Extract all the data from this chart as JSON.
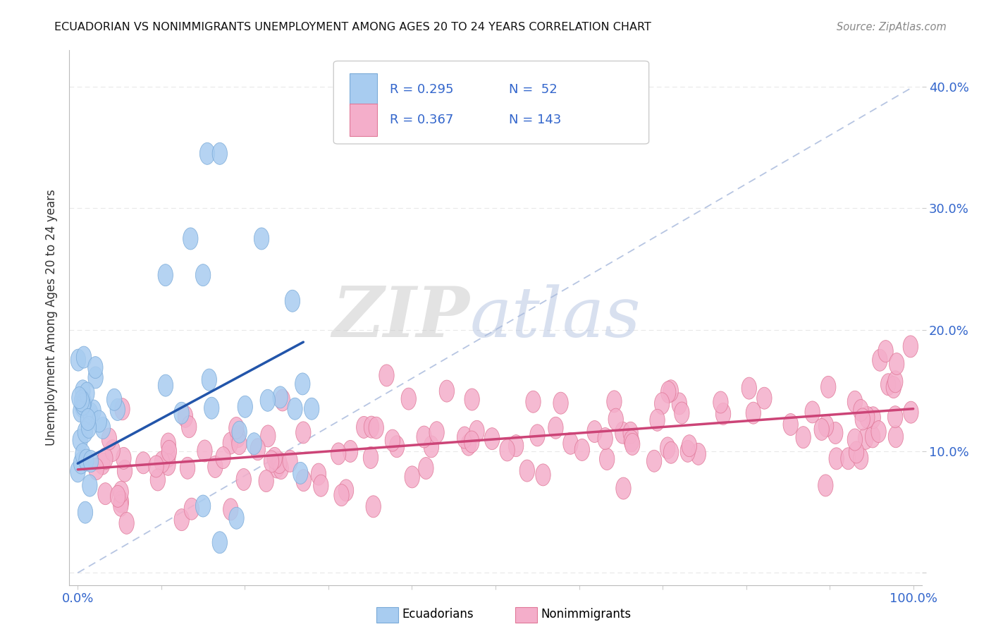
{
  "title": "ECUADORIAN VS NONIMMIGRANTS UNEMPLOYMENT AMONG AGES 20 TO 24 YEARS CORRELATION CHART",
  "source": "Source: ZipAtlas.com",
  "ylabel": "Unemployment Among Ages 20 to 24 years",
  "xlim": [
    -0.01,
    1.01
  ],
  "ylim": [
    -0.01,
    0.43
  ],
  "ecuadorian_color": "#A8CCF0",
  "ecuadorian_edge": "#7AAAD8",
  "nonimmigrant_color": "#F4AECA",
  "nonimmigrant_edge": "#E07898",
  "ecuadorian_line_color": "#2255AA",
  "nonimmigrant_line_color": "#CC4477",
  "diagonal_color": "#AABBDD",
  "R_ecu": 0.295,
  "N_ecu": 52,
  "R_non": 0.367,
  "N_non": 143,
  "background_color": "#FFFFFF",
  "legend_label_ecu": "Ecuadorians",
  "legend_label_non": "Nonimmigrants",
  "grid_color": "#E8E8E8",
  "tick_color": "#3366CC",
  "ylabel_color": "#333333",
  "title_color": "#111111",
  "source_color": "#888888"
}
